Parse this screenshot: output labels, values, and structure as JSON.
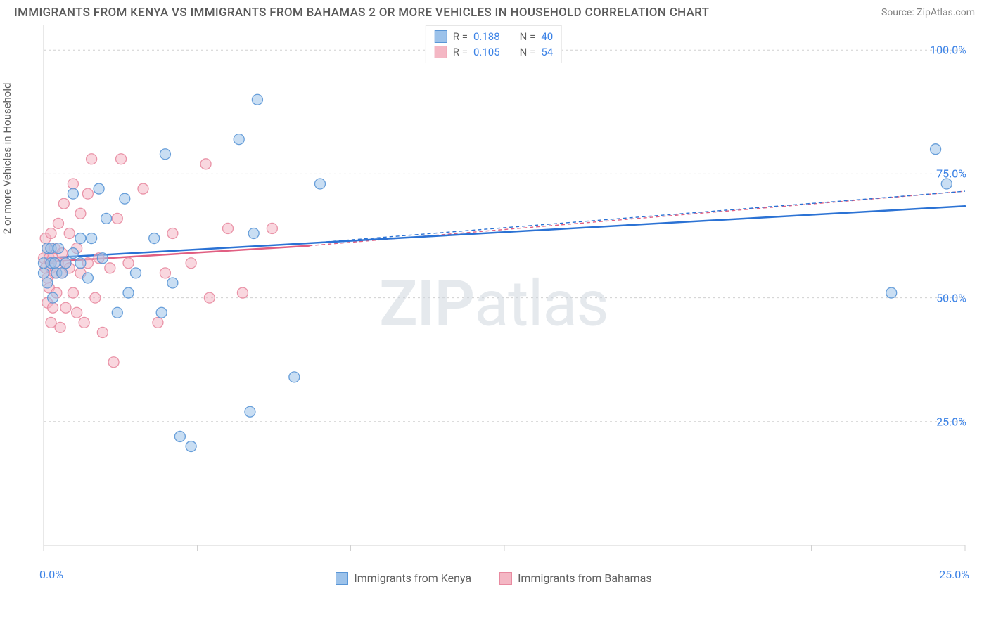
{
  "title": "IMMIGRANTS FROM KENYA VS IMMIGRANTS FROM BAHAMAS 2 OR MORE VEHICLES IN HOUSEHOLD CORRELATION CHART",
  "source": "Source: ZipAtlas.com",
  "watermark_zip": "ZIP",
  "watermark_atlas": "atlas",
  "y_axis_label": "2 or more Vehicles in Household",
  "chart": {
    "type": "scatter",
    "background_color": "#ffffff",
    "grid_color": "#d0d0d0",
    "border_color": "#d0d0d0",
    "xlim": [
      0,
      25
    ],
    "ylim": [
      0,
      105
    ],
    "x_ticks_major": [
      0,
      25
    ],
    "x_ticks_minor": [
      4.17,
      8.33,
      12.5,
      16.67,
      20.83
    ],
    "x_tick_labels": {
      "min": "0.0%",
      "max": "25.0%"
    },
    "y_ticks": [
      25,
      50,
      75,
      100
    ],
    "y_tick_labels": [
      "25.0%",
      "50.0%",
      "75.0%",
      "100.0%"
    ],
    "fontsize_title": 17,
    "fontsize_axis": 15,
    "fontsize_tick": 16,
    "marker_radius": 7.5,
    "marker_opacity": 0.55,
    "marker_stroke_opacity": 0.9,
    "line_width_solid": 2.5,
    "line_width_dash": 1.4,
    "dash_pattern": "5,4"
  },
  "series": {
    "kenya": {
      "label": "Immigrants from Kenya",
      "fill_color": "#9cc2ea",
      "stroke_color": "#5a96d6",
      "line_color": "#2b72d4",
      "r_label": "R =",
      "r_value": "0.188",
      "n_label": "N =",
      "n_value": "40",
      "trend": {
        "x1": 0,
        "y1": 58,
        "x2": 25,
        "y2": 68.5
      },
      "trend_dash": {
        "x1": 7.5,
        "y1": 61.2,
        "x2": 25,
        "y2": 71.5
      },
      "points": [
        [
          0.0,
          55
        ],
        [
          0.0,
          57
        ],
        [
          0.1,
          60
        ],
        [
          0.1,
          53
        ],
        [
          0.2,
          57
        ],
        [
          0.2,
          60
        ],
        [
          0.25,
          50
        ],
        [
          0.3,
          57
        ],
        [
          0.35,
          55
        ],
        [
          0.4,
          60
        ],
        [
          0.5,
          55
        ],
        [
          0.6,
          57
        ],
        [
          0.8,
          59
        ],
        [
          0.8,
          71
        ],
        [
          1.0,
          57
        ],
        [
          1.0,
          62
        ],
        [
          1.2,
          54
        ],
        [
          1.3,
          62
        ],
        [
          1.5,
          72
        ],
        [
          1.6,
          58
        ],
        [
          1.7,
          66
        ],
        [
          2.0,
          47
        ],
        [
          2.2,
          70
        ],
        [
          2.3,
          51
        ],
        [
          2.5,
          55
        ],
        [
          3.0,
          62
        ],
        [
          3.2,
          47
        ],
        [
          3.3,
          79
        ],
        [
          3.5,
          53
        ],
        [
          3.7,
          22
        ],
        [
          4.0,
          20
        ],
        [
          5.3,
          82
        ],
        [
          5.6,
          27
        ],
        [
          5.7,
          63
        ],
        [
          5.8,
          90
        ],
        [
          6.8,
          34
        ],
        [
          7.5,
          73
        ],
        [
          23.0,
          51
        ],
        [
          24.2,
          80
        ],
        [
          24.5,
          73
        ]
      ]
    },
    "bahamas": {
      "label": "Immigrants from Bahamas",
      "fill_color": "#f4b7c4",
      "stroke_color": "#e88aa0",
      "line_color": "#e15f82",
      "r_label": "R =",
      "r_value": "0.105",
      "n_label": "N =",
      "n_value": "54",
      "trend": {
        "x1": 0,
        "y1": 57.2,
        "x2": 7.2,
        "y2": 60.5
      },
      "trend_dash": {
        "x1": 7.2,
        "y1": 60.5,
        "x2": 25,
        "y2": 71.5
      },
      "points": [
        [
          0.0,
          58
        ],
        [
          0.05,
          56
        ],
        [
          0.05,
          62
        ],
        [
          0.1,
          49
        ],
        [
          0.1,
          54
        ],
        [
          0.1,
          60
        ],
        [
          0.15,
          52
        ],
        [
          0.15,
          58
        ],
        [
          0.2,
          45
        ],
        [
          0.2,
          56
        ],
        [
          0.2,
          63
        ],
        [
          0.25,
          48
        ],
        [
          0.25,
          58
        ],
        [
          0.3,
          55
        ],
        [
          0.3,
          60
        ],
        [
          0.35,
          51
        ],
        [
          0.4,
          57
        ],
        [
          0.4,
          65
        ],
        [
          0.45,
          44
        ],
        [
          0.5,
          55
        ],
        [
          0.5,
          59
        ],
        [
          0.55,
          69
        ],
        [
          0.6,
          48
        ],
        [
          0.6,
          57
        ],
        [
          0.7,
          56
        ],
        [
          0.7,
          63
        ],
        [
          0.8,
          51
        ],
        [
          0.8,
          73
        ],
        [
          0.9,
          47
        ],
        [
          0.9,
          60
        ],
        [
          1.0,
          55
        ],
        [
          1.0,
          67
        ],
        [
          1.1,
          45
        ],
        [
          1.2,
          57
        ],
        [
          1.2,
          71
        ],
        [
          1.3,
          78
        ],
        [
          1.4,
          50
        ],
        [
          1.5,
          58
        ],
        [
          1.6,
          43
        ],
        [
          1.8,
          56
        ],
        [
          1.9,
          37
        ],
        [
          2.0,
          66
        ],
        [
          2.1,
          78
        ],
        [
          2.3,
          57
        ],
        [
          2.7,
          72
        ],
        [
          3.1,
          45
        ],
        [
          3.3,
          55
        ],
        [
          3.5,
          63
        ],
        [
          4.0,
          57
        ],
        [
          4.4,
          77
        ],
        [
          4.5,
          50
        ],
        [
          5.0,
          64
        ],
        [
          5.4,
          51
        ],
        [
          6.2,
          64
        ]
      ]
    }
  }
}
